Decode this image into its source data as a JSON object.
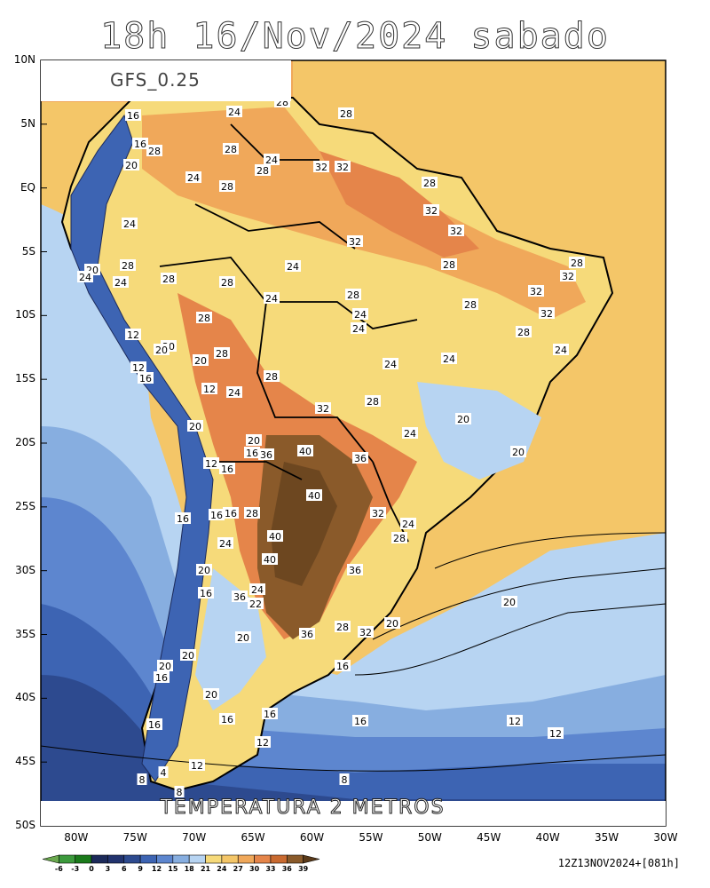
{
  "title": "18h 16/Nov/2024 sabado",
  "model": "GFS_0.25",
  "variable": "TEMPERATURA 2 METROS",
  "run": "12Z13NOV2024+[081h]",
  "lat_labels": [
    "10N",
    "5N",
    "EQ",
    "5S",
    "10S",
    "15S",
    "20S",
    "25S",
    "30S",
    "35S",
    "40S",
    "45S",
    "50S"
  ],
  "lon_labels": [
    "80W",
    "75W",
    "70W",
    "65W",
    "60W",
    "55W",
    "50W",
    "45W",
    "40W",
    "35W",
    "30W"
  ],
  "colorbar": {
    "ticks": [
      "-6",
      "-3",
      "0",
      "3",
      "6",
      "9",
      "12",
      "15",
      "18",
      "21",
      "24",
      "27",
      "30",
      "33",
      "36",
      "39"
    ],
    "colors": [
      "#6aa84f",
      "#3c9a3c",
      "#1a7a1a",
      "#1c2a5a",
      "#22336e",
      "#2d4a8f",
      "#3d64b3",
      "#5d86cf",
      "#87aee0",
      "#b7d4f2",
      "#f6da7a",
      "#f4c668",
      "#f0a85a",
      "#e5854a",
      "#c96a30",
      "#8a5a2a",
      "#5a3a1a"
    ]
  },
  "contour_labels": [
    "28",
    "24",
    "28",
    "16",
    "16",
    "28",
    "28",
    "32",
    "32",
    "20",
    "24",
    "28",
    "24",
    "28",
    "28",
    "32",
    "24",
    "32",
    "28",
    "28",
    "32",
    "28",
    "28",
    "32",
    "24",
    "28",
    "32",
    "28",
    "24",
    "24",
    "20",
    "12",
    "20",
    "28",
    "32",
    "24",
    "12",
    "16",
    "12",
    "24",
    "28",
    "32",
    "28",
    "24",
    "20",
    "20",
    "20",
    "36",
    "40",
    "36",
    "16",
    "12",
    "40",
    "32",
    "16",
    "12",
    "16",
    "28",
    "24",
    "24",
    "40",
    "28",
    "24",
    "40",
    "36",
    "20",
    "16",
    "36",
    "24",
    "20",
    "36",
    "28",
    "32",
    "20",
    "20",
    "16",
    "20",
    "16",
    "8",
    "16",
    "20",
    "12",
    "12",
    "16",
    "12",
    "12",
    "4",
    "8",
    "8",
    "8",
    "24",
    "20",
    "16",
    "12",
    "24"
  ]
}
